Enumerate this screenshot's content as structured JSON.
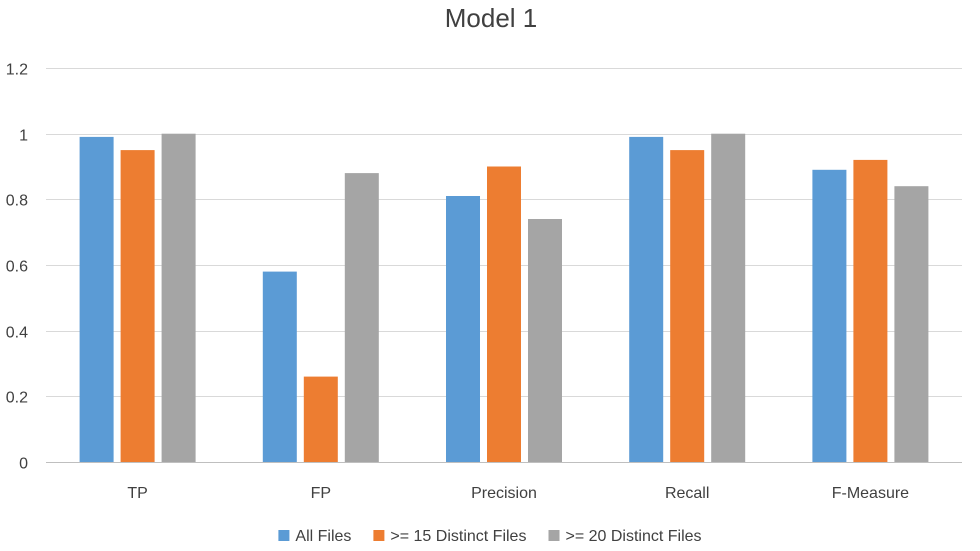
{
  "chart_data": {
    "type": "bar",
    "title": "Model 1",
    "xlabel": "",
    "ylabel": "",
    "categories": [
      "TP",
      "FP",
      "Precision",
      "Recall",
      "F-Measure"
    ],
    "series": [
      {
        "name": "All Files",
        "color": "#5b9bd5",
        "values": [
          0.99,
          0.58,
          0.81,
          0.99,
          0.89
        ]
      },
      {
        "name": ">=  15 Distinct Files",
        "color": "#ed7d31",
        "values": [
          0.95,
          0.26,
          0.9,
          0.95,
          0.92
        ]
      },
      {
        "name": ">=  20 Distinct Files",
        "color": "#a5a5a5",
        "values": [
          1.0,
          0.88,
          0.74,
          1.0,
          0.84
        ]
      }
    ],
    "ylim": [
      0,
      1.2
    ],
    "yticks": [
      0,
      0.2,
      0.4,
      0.6,
      0.8,
      1,
      1.2
    ],
    "ytick_labels": [
      "0",
      "0.2",
      "0.4",
      "0.6",
      "0.8",
      "1",
      "1.2"
    ],
    "grid": true,
    "legend_position": "bottom-center"
  }
}
